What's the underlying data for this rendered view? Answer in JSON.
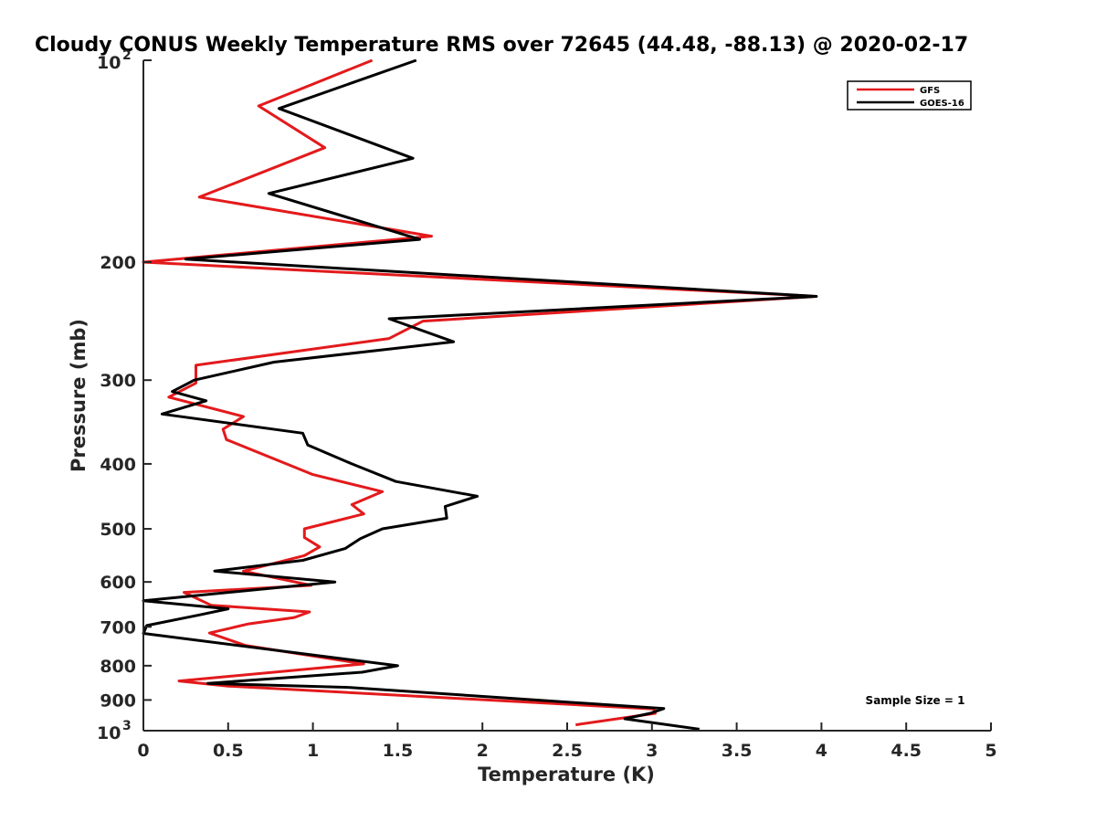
{
  "chart_data": {
    "type": "line",
    "title": "Cloudy CONUS Weekly Temperature RMS over 72645 (44.48, -88.13) @ 2020-02-17",
    "xlabel": "Temperature (K)",
    "ylabel": "Pressure (mb)",
    "xlim": [
      0,
      5
    ],
    "ylim": [
      100,
      1000
    ],
    "y_scale": "log",
    "y_reversed": true,
    "x_ticks": [
      "0",
      "0.5",
      "1",
      "1.5",
      "2",
      "2.5",
      "3",
      "3.5",
      "4",
      "4.5",
      "5"
    ],
    "y_ticks": [
      {
        "value": 100,
        "base": "10",
        "exp": "2"
      },
      {
        "value": 200,
        "label": "200"
      },
      {
        "value": 300,
        "label": "300"
      },
      {
        "value": 400,
        "label": "400"
      },
      {
        "value": 500,
        "label": "500"
      },
      {
        "value": 600,
        "label": "600"
      },
      {
        "value": 700,
        "label": "700"
      },
      {
        "value": 800,
        "label": "800"
      },
      {
        "value": 900,
        "label": "900"
      },
      {
        "value": 1000,
        "base": "10",
        "exp": "3"
      }
    ],
    "grid": false,
    "legend_position": "top-right",
    "annotation": "Sample Size = 1",
    "series": [
      {
        "name": "GFS",
        "color": "#e31a1c",
        "points": [
          [
            1.35,
            100
          ],
          [
            0.68,
            117
          ],
          [
            1.07,
            135
          ],
          [
            0.33,
            160
          ],
          [
            1.7,
            183
          ],
          [
            0.0,
            200
          ],
          [
            3.97,
            225
          ],
          [
            1.65,
            245
          ],
          [
            1.45,
            260
          ],
          [
            0.31,
            285
          ],
          [
            0.31,
            303
          ],
          [
            0.15,
            318
          ],
          [
            0.59,
            340
          ],
          [
            0.47,
            355
          ],
          [
            0.49,
            368
          ],
          [
            1.0,
            415
          ],
          [
            1.41,
            440
          ],
          [
            1.23,
            460
          ],
          [
            1.3,
            475
          ],
          [
            0.95,
            500
          ],
          [
            0.95,
            515
          ],
          [
            1.04,
            532
          ],
          [
            0.95,
            548
          ],
          [
            0.59,
            578
          ],
          [
            0.99,
            607
          ],
          [
            0.24,
            622
          ],
          [
            0.4,
            650
          ],
          [
            0.98,
            665
          ],
          [
            0.89,
            678
          ],
          [
            0.62,
            693
          ],
          [
            0.39,
            715
          ],
          [
            0.6,
            746
          ],
          [
            1.3,
            795
          ],
          [
            0.21,
            843
          ],
          [
            0.5,
            858
          ],
          [
            3.01,
            928
          ],
          [
            3.02,
            942
          ],
          [
            2.55,
            980
          ]
        ]
      },
      {
        "name": "GOES-16",
        "color": "#000000",
        "points": [
          [
            1.61,
            100
          ],
          [
            0.8,
            118
          ],
          [
            1.59,
            140
          ],
          [
            0.74,
            158
          ],
          [
            1.63,
            185
          ],
          [
            0.25,
            198
          ],
          [
            3.97,
            225
          ],
          [
            1.45,
            243
          ],
          [
            1.83,
            263
          ],
          [
            0.77,
            282
          ],
          [
            0.3,
            300
          ],
          [
            0.17,
            312
          ],
          [
            0.37,
            322
          ],
          [
            0.11,
            337
          ],
          [
            0.94,
            360
          ],
          [
            0.97,
            375
          ],
          [
            1.23,
            400
          ],
          [
            1.49,
            425
          ],
          [
            1.97,
            447
          ],
          [
            1.78,
            463
          ],
          [
            1.79,
            482
          ],
          [
            1.41,
            500
          ],
          [
            1.28,
            517
          ],
          [
            1.19,
            535
          ],
          [
            0.94,
            557
          ],
          [
            0.42,
            578
          ],
          [
            1.13,
            600
          ],
          [
            0.0,
            640
          ],
          [
            0.5,
            658
          ],
          [
            0.33,
            672
          ],
          [
            0.02,
            697
          ],
          [
            0.0,
            716
          ],
          [
            1.5,
            800
          ],
          [
            1.29,
            818
          ],
          [
            0.38,
            850
          ],
          [
            1.22,
            862
          ],
          [
            3.07,
            927
          ],
          [
            2.99,
            942
          ],
          [
            2.84,
            960
          ],
          [
            3.28,
            995
          ]
        ]
      }
    ]
  }
}
